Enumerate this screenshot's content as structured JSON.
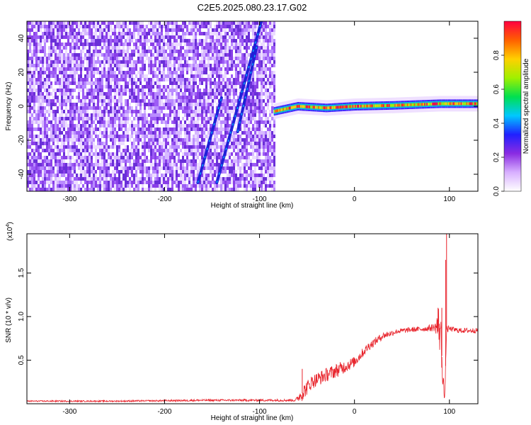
{
  "title": "C2E5.2025.080.23.17.G02",
  "chart_data": [
    {
      "type": "heatmap",
      "title": "C2E5.2025.080.23.17.G02",
      "xlabel": "Height of straight line (km)",
      "ylabel": "Frequency (Hz)",
      "xlim": [
        -345,
        130
      ],
      "ylim": [
        -50,
        50
      ],
      "xticks": [
        -300,
        -200,
        -100,
        0,
        100
      ],
      "yticks": [
        -40,
        -20,
        0,
        20,
        40
      ],
      "colorbar": {
        "label": "Normalized spectral amplitude",
        "range": [
          0.0,
          1.0
        ],
        "ticks": [
          0.0,
          0.2,
          0.4,
          0.6,
          0.8
        ],
        "colors": [
          "#ffffff",
          "#d8b0ff",
          "#8a2be2",
          "#2020ff",
          "#00c8ff",
          "#00e050",
          "#a0f000",
          "#ffd000",
          "#ff6000",
          "#ff0040"
        ]
      },
      "noise_region_x": [
        -345,
        -85
      ],
      "streaks": [
        {
          "x": [
            -165,
            -140
          ],
          "y": [
            -45,
            5
          ]
        },
        {
          "x": [
            -145,
            -98
          ],
          "y": [
            -45,
            50
          ]
        },
        {
          "x": [
            -123,
            -103
          ],
          "y": [
            -15,
            35
          ]
        }
      ],
      "ridge_center_hz": [
        {
          "x": -85,
          "y": -3
        },
        {
          "x": -60,
          "y": 0
        },
        {
          "x": -30,
          "y": -1
        },
        {
          "x": 0,
          "y": 0
        },
        {
          "x": 40,
          "y": 0.5
        },
        {
          "x": 90,
          "y": 1.5
        },
        {
          "x": 130,
          "y": 1.5
        }
      ]
    },
    {
      "type": "line",
      "xlabel": "Height of straight line (km)",
      "ylabel": "SNR (10 * v/v)",
      "y_multiplier": "(x10",
      "y_multiplier_exp": "4",
      "y_multiplier_close": ")",
      "xlim": [
        -345,
        130
      ],
      "ylim": [
        0,
        1.95
      ],
      "xticks": [
        -300,
        -200,
        -100,
        0,
        100
      ],
      "yticks": [
        0.5,
        1.0,
        1.5
      ],
      "ytick_labels": [
        "0.5",
        "1.0",
        "1.5"
      ],
      "series": [
        {
          "color": "#e8232b",
          "x": [
            -345,
            -250,
            -200,
            -160,
            -110,
            -85,
            -62,
            -55,
            -45,
            -30,
            -15,
            0,
            15,
            30,
            45,
            60,
            75,
            85,
            90,
            95,
            97,
            100,
            110,
            130
          ],
          "y": [
            0.03,
            0.03,
            0.035,
            0.04,
            0.04,
            0.04,
            0.04,
            0.12,
            0.25,
            0.33,
            0.4,
            0.48,
            0.66,
            0.78,
            0.83,
            0.85,
            0.86,
            0.88,
            0.9,
            0.02,
            0.85,
            0.86,
            0.84,
            0.84
          ],
          "noise": [
            0.008,
            0.008,
            0.01,
            0.012,
            0.012,
            0.012,
            0.015,
            0.09,
            0.08,
            0.08,
            0.08,
            0.06,
            0.05,
            0.04,
            0.03,
            0.03,
            0.03,
            0.05,
            0.35,
            0.05,
            0.05,
            0.03,
            0.03,
            0.03
          ],
          "spikes": [
            {
              "x": -55,
              "y": 0.4
            },
            {
              "x": 88,
              "y": 1.1
            },
            {
              "x": 92,
              "y": 1.1
            },
            {
              "x": 96,
              "y": 1.65
            },
            {
              "x": 97,
              "y": 1.95
            }
          ]
        }
      ]
    }
  ]
}
